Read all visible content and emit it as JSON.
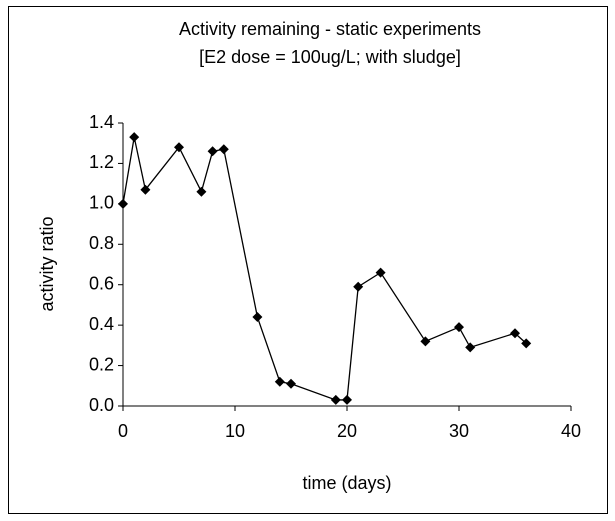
{
  "chart_data": {
    "type": "line",
    "title": "Activity remaining - static experiments",
    "subtitle": "[E2 dose = 100ug/L; with sludge]",
    "x_label": "time (days)",
    "y_label": "activity ratio",
    "x": [
      0,
      1,
      2,
      5,
      7,
      8,
      9,
      12,
      14,
      15,
      19,
      20,
      21,
      23,
      27,
      30,
      31,
      35,
      36
    ],
    "values": [
      1.0,
      1.33,
      1.07,
      1.28,
      1.06,
      1.26,
      1.27,
      0.44,
      0.12,
      0.11,
      0.03,
      0.03,
      0.59,
      0.66,
      0.32,
      0.39,
      0.29,
      0.36,
      0.31
    ],
    "color": "#000000",
    "xlim": [
      0,
      40
    ],
    "xticks": [
      0,
      10,
      20,
      30,
      40
    ],
    "ylim": [
      0,
      1.4
    ],
    "yticks": [
      {
        "value": 0,
        "label": "0.0"
      },
      0.2,
      0.4,
      0.6,
      0.8,
      {
        "value": 1,
        "label": "1.0"
      },
      1.2,
      1.4
    ],
    "grid": false
  }
}
